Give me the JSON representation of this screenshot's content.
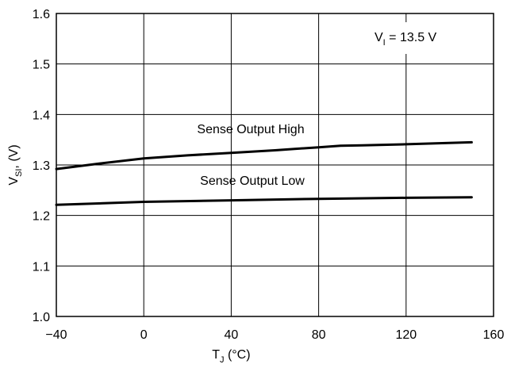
{
  "chart_data": {
    "type": "line",
    "xlabel": "T",
    "xlabel_sub": "J",
    "xlabel_suffix": " (°C)",
    "ylabel": "V",
    "ylabel_sub": "SI",
    "ylabel_suffix": ", (V)",
    "xlim": [
      -40,
      160
    ],
    "ylim": [
      1.0,
      1.6
    ],
    "x_ticks": [
      -40,
      0,
      40,
      80,
      120,
      160
    ],
    "x_tick_labels": [
      "−40",
      "0",
      "40",
      "80",
      "120",
      "160"
    ],
    "y_ticks": [
      1.0,
      1.1,
      1.2,
      1.3,
      1.4,
      1.5,
      1.6
    ],
    "y_tick_labels": [
      "1.0",
      "1.1",
      "1.2",
      "1.3",
      "1.4",
      "1.5",
      "1.6"
    ],
    "grid": true,
    "condition_label": {
      "main": "V",
      "sub": "I",
      "rest": " = 13.5 V"
    },
    "series": [
      {
        "name": "Sense Output High",
        "color": "#000000",
        "x": [
          -40,
          -20,
          0,
          20,
          40,
          60,
          80,
          90,
          100,
          120,
          150
        ],
        "y": [
          1.292,
          1.303,
          1.313,
          1.319,
          1.324,
          1.329,
          1.335,
          1.338,
          1.339,
          1.341,
          1.345
        ]
      },
      {
        "name": "Sense Output Low",
        "color": "#000000",
        "x": [
          -40,
          0,
          40,
          80,
          120,
          150
        ],
        "y": [
          1.221,
          1.227,
          1.23,
          1.233,
          1.235,
          1.236
        ]
      }
    ]
  }
}
